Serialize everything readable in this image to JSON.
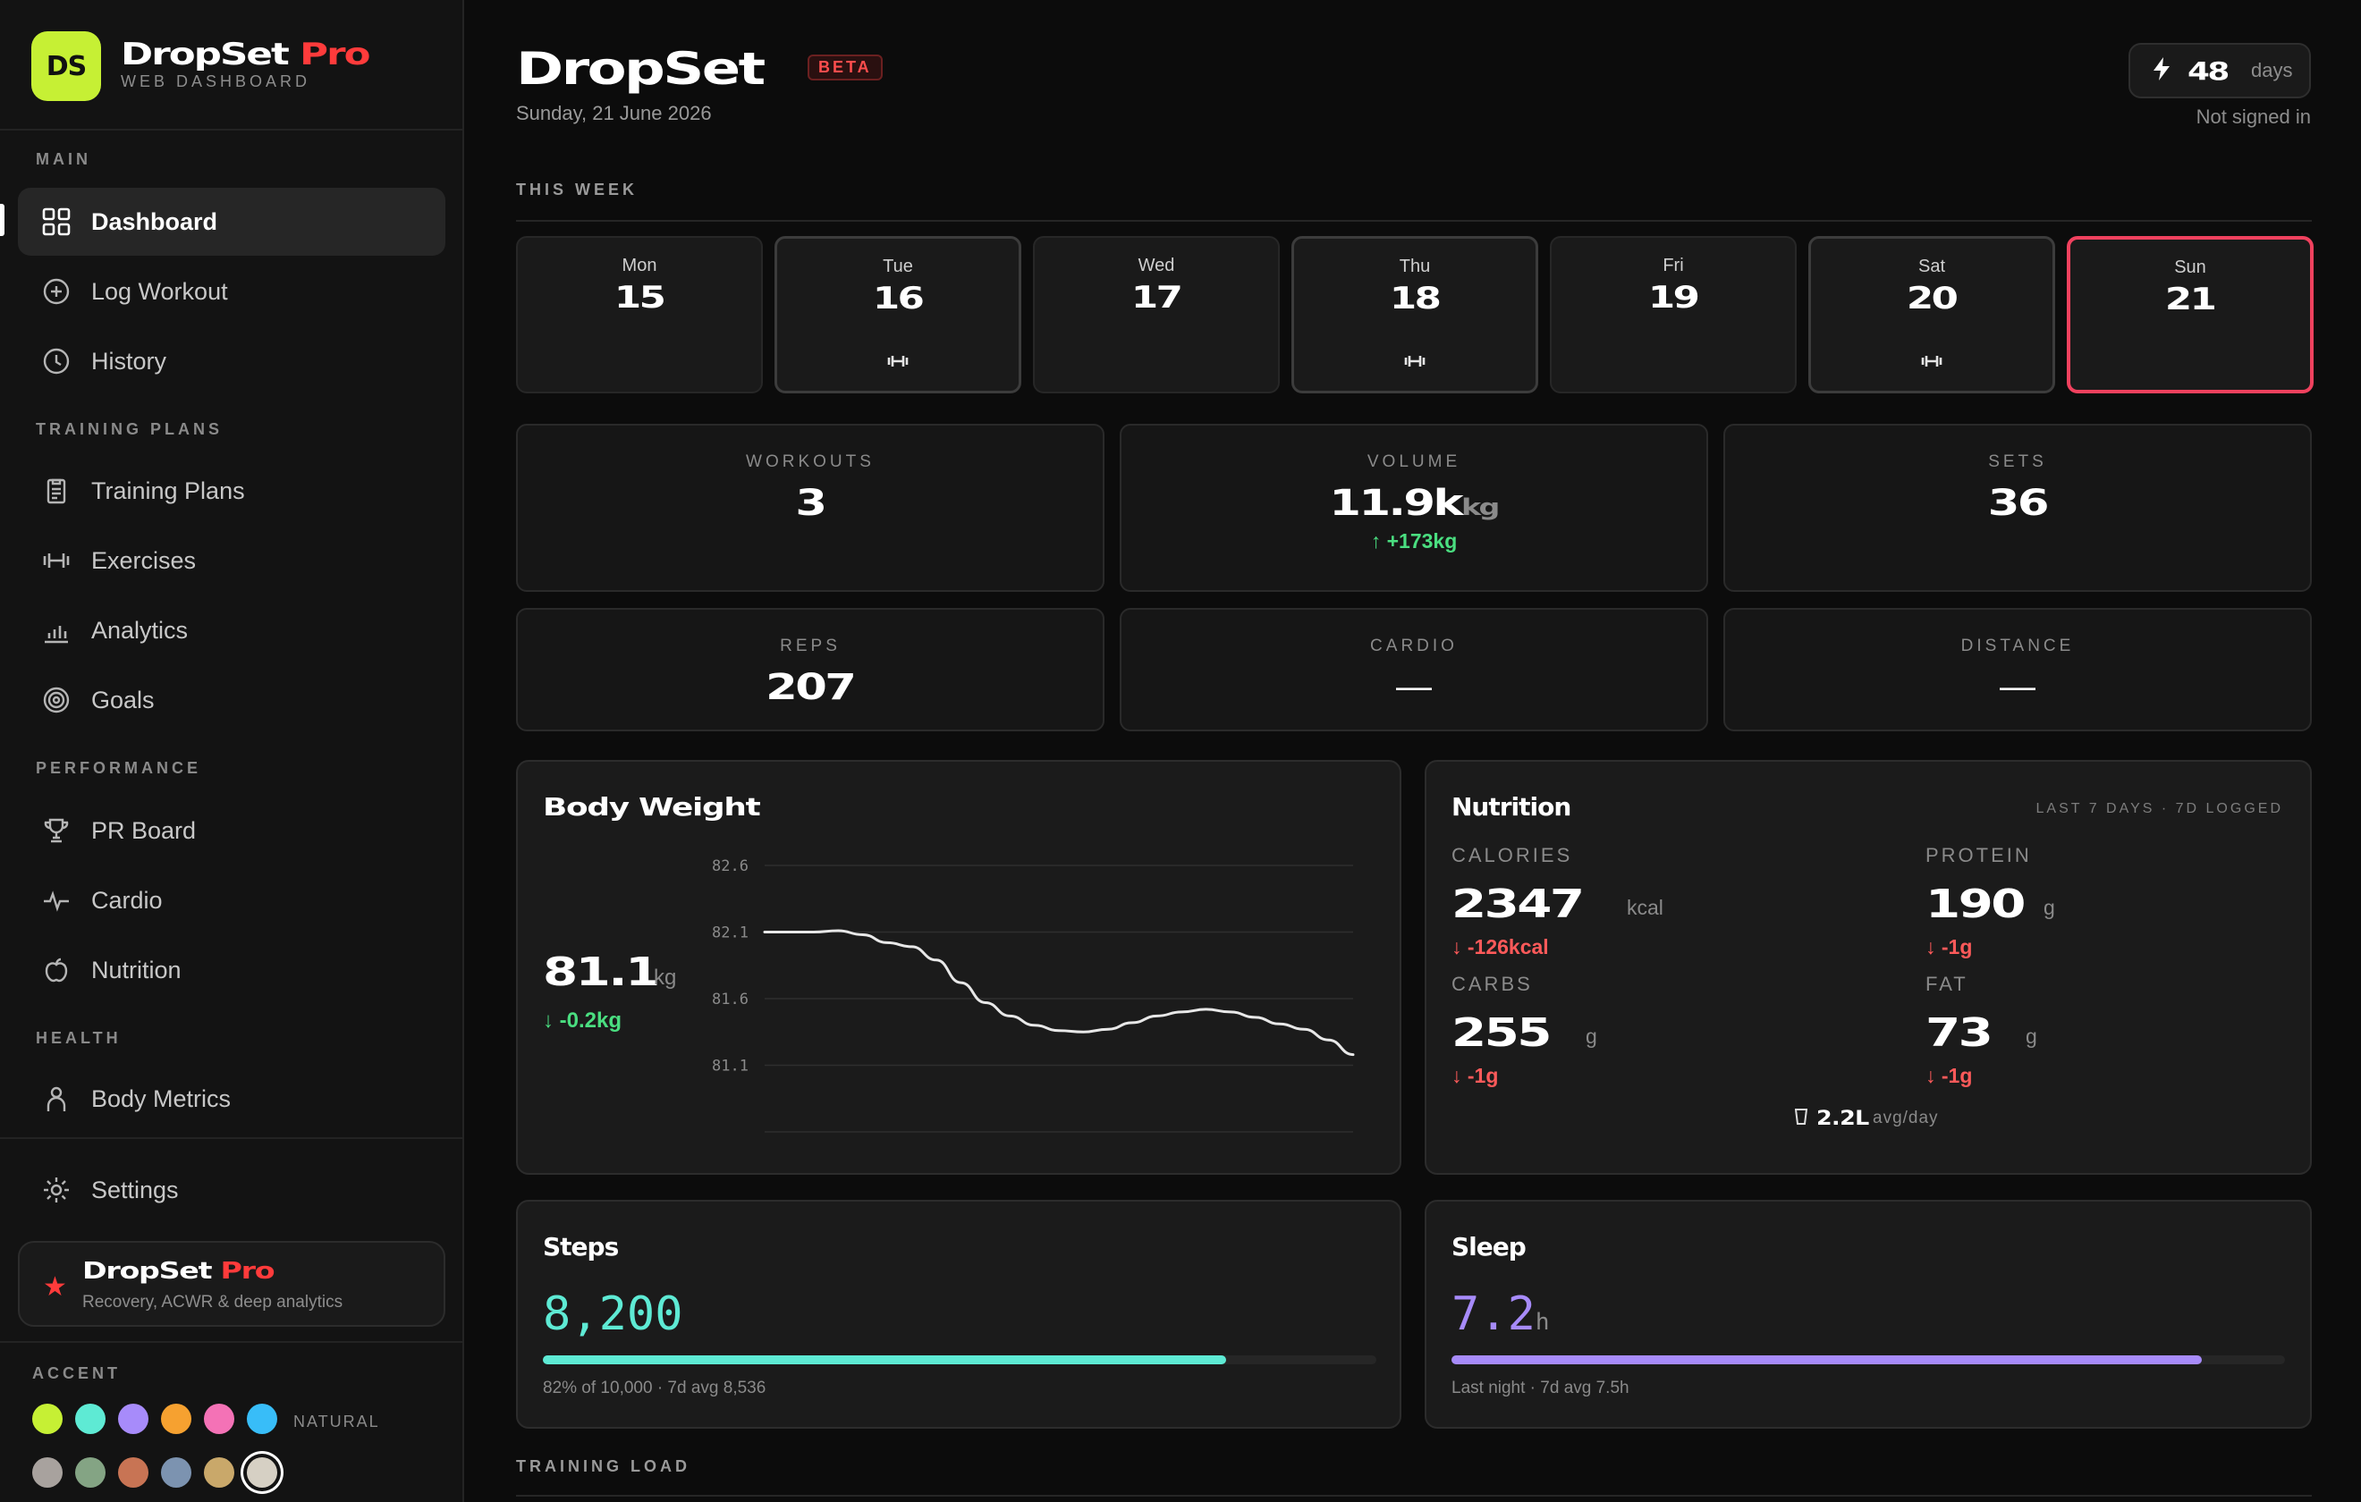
{
  "brand": {
    "logo": "DS",
    "name": "DropSet",
    "pro": "Pro",
    "subtitle": "WEB DASHBOARD"
  },
  "sidebar": {
    "sections": [
      {
        "label": "MAIN",
        "items": [
          {
            "label": "Dashboard",
            "icon": "grid-icon",
            "active": true
          },
          {
            "label": "Log Workout",
            "icon": "plus-circle-icon"
          },
          {
            "label": "History",
            "icon": "clock-icon"
          }
        ]
      },
      {
        "label": "TRAINING PLANS",
        "items": [
          {
            "label": "Training Plans",
            "icon": "clipboard-icon"
          },
          {
            "label": "Exercises",
            "icon": "dumbbell-icon"
          },
          {
            "label": "Analytics",
            "icon": "bar-chart-icon"
          },
          {
            "label": "Goals",
            "icon": "target-icon"
          }
        ]
      },
      {
        "label": "PERFORMANCE",
        "items": [
          {
            "label": "PR Board",
            "icon": "trophy-icon"
          },
          {
            "label": "Cardio",
            "icon": "pulse-icon"
          },
          {
            "label": "Nutrition",
            "icon": "apple-icon"
          }
        ]
      },
      {
        "label": "HEALTH",
        "items": [
          {
            "label": "Body Metrics",
            "icon": "person-icon"
          }
        ]
      }
    ],
    "settings_label": "Settings",
    "promo": {
      "name": "DropSet",
      "pro": "Pro",
      "subtitle": "Recovery, ACWR & deep analytics"
    },
    "accent_label": "ACCENT",
    "accent_row1": [
      "#c6f034",
      "#5eead4",
      "#a78bfa",
      "#f6a130",
      "#f472b6",
      "#38bdf8"
    ],
    "accent_row2": [
      "#a8a29e",
      "#84a484",
      "#c87454",
      "#7c93b0",
      "#c9a86a",
      "#d6d0c4"
    ],
    "natural_label": "NATURAL"
  },
  "header": {
    "title": "DropSet",
    "badge": "BETA",
    "date": "Sunday, 21 June 2026",
    "streak_value": "48",
    "streak_unit": "days",
    "auth_status": "Not signed in"
  },
  "this_week": {
    "label": "THIS WEEK",
    "days": [
      {
        "name": "Mon",
        "date": "15",
        "workout": false
      },
      {
        "name": "Tue",
        "date": "16",
        "workout": true
      },
      {
        "name": "Wed",
        "date": "17",
        "workout": false
      },
      {
        "name": "Thu",
        "date": "18",
        "workout": true
      },
      {
        "name": "Fri",
        "date": "19",
        "workout": false
      },
      {
        "name": "Sat",
        "date": "20",
        "workout": true
      },
      {
        "name": "Sun",
        "date": "21",
        "workout": false,
        "today": true
      }
    ]
  },
  "stats": {
    "workouts": {
      "label": "WORKOUTS",
      "value": "3"
    },
    "volume": {
      "label": "VOLUME",
      "value": "11.9k",
      "unit": "kg",
      "delta": "↑ +173kg"
    },
    "sets": {
      "label": "SETS",
      "value": "36"
    },
    "reps": {
      "label": "REPS",
      "value": "207"
    },
    "cardio": {
      "label": "CARDIO",
      "value": "—"
    },
    "distance": {
      "label": "DISTANCE",
      "value": "—"
    }
  },
  "body_weight": {
    "title": "Body Weight",
    "value": "81.1",
    "unit": "kg",
    "delta": "↓ -0.2kg"
  },
  "chart_data": {
    "type": "line",
    "yticks": [
      "82.6",
      "82.1",
      "81.6",
      "81.1"
    ],
    "ylim": [
      80.6,
      82.6
    ],
    "values": [
      82.1,
      82.1,
      82.1,
      82.11,
      82.08,
      82.02,
      81.99,
      81.89,
      81.72,
      81.57,
      81.47,
      81.4,
      81.36,
      81.35,
      81.37,
      81.42,
      81.47,
      81.5,
      81.52,
      81.5,
      81.46,
      81.41,
      81.37,
      81.29,
      81.18
    ]
  },
  "nutrition": {
    "title": "Nutrition",
    "meta": "LAST 7 DAYS · 7D LOGGED",
    "calories": {
      "label": "CALORIES",
      "value": "2347",
      "unit": "kcal",
      "delta": "↓ -126kcal"
    },
    "protein": {
      "label": "PROTEIN",
      "value": "190",
      "unit": "g",
      "delta": "↓ -1g"
    },
    "carbs": {
      "label": "CARBS",
      "value": "255",
      "unit": "g",
      "delta": "↓ -1g"
    },
    "fat": {
      "label": "FAT",
      "value": "73",
      "unit": "g",
      "delta": "↓ -1g"
    },
    "water": "2.2L",
    "water_avg": "avg/day"
  },
  "steps": {
    "title": "Steps",
    "value": "8,200",
    "progress": 0.82,
    "note": "82% of 10,000 · 7d avg 8,536",
    "color": "#5eead4"
  },
  "sleep": {
    "title": "Sleep",
    "value": "7.2",
    "unit": "h",
    "progress": 0.9,
    "note": "Last night · 7d avg 7.5h",
    "color": "#a78bfa"
  },
  "training_load": {
    "label": "TRAINING LOAD"
  }
}
